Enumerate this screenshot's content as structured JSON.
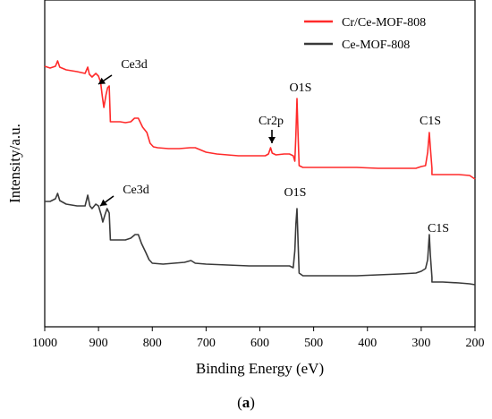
{
  "caption": {
    "open": "(",
    "letter": "a",
    "close": ")"
  },
  "chart_data": {
    "type": "line",
    "xlabel": "Binding Energy (eV)",
    "ylabel": "Intensity/a.u.",
    "xlim": [
      1000,
      200
    ],
    "x_reversed": true,
    "x_ticks": [
      1000,
      900,
      800,
      700,
      600,
      500,
      400,
      300,
      200
    ],
    "y_ticks_shown": false,
    "legend_position": "top-right",
    "grid": false,
    "series": [
      {
        "name": "Cr/Ce-MOF-808",
        "color": "#ff2a2a",
        "points": [
          [
            1000,
            74
          ],
          [
            990,
            76
          ],
          [
            980,
            74
          ],
          [
            976,
            68
          ],
          [
            972,
            75
          ],
          [
            960,
            78
          ],
          [
            940,
            80
          ],
          [
            925,
            82
          ],
          [
            920,
            75
          ],
          [
            917,
            83
          ],
          [
            912,
            86
          ],
          [
            905,
            82
          ],
          [
            900,
            85
          ],
          [
            896,
            92
          ],
          [
            893,
            107
          ],
          [
            890,
            120
          ],
          [
            886,
            106
          ],
          [
            883,
            98
          ],
          [
            880,
            96
          ],
          [
            878,
            136
          ],
          [
            870,
            136
          ],
          [
            860,
            136
          ],
          [
            850,
            137
          ],
          [
            840,
            136
          ],
          [
            833,
            132
          ],
          [
            826,
            132
          ],
          [
            818,
            142
          ],
          [
            810,
            148
          ],
          [
            804,
            160
          ],
          [
            798,
            164
          ],
          [
            790,
            165
          ],
          [
            770,
            166
          ],
          [
            750,
            166
          ],
          [
            730,
            165
          ],
          [
            720,
            165
          ],
          [
            700,
            170
          ],
          [
            680,
            172
          ],
          [
            660,
            173
          ],
          [
            640,
            174
          ],
          [
            620,
            174
          ],
          [
            600,
            174
          ],
          [
            590,
            174
          ],
          [
            584,
            172
          ],
          [
            580,
            165
          ],
          [
            577,
            171
          ],
          [
            570,
            173
          ],
          [
            555,
            172
          ],
          [
            545,
            172
          ],
          [
            538,
            174
          ],
          [
            535,
            180
          ],
          [
            533,
            150
          ],
          [
            531,
            110
          ],
          [
            529,
            150
          ],
          [
            527,
            185
          ],
          [
            520,
            187
          ],
          [
            500,
            187
          ],
          [
            460,
            187
          ],
          [
            420,
            187
          ],
          [
            380,
            188
          ],
          [
            340,
            188
          ],
          [
            310,
            188
          ],
          [
            300,
            186
          ],
          [
            292,
            185
          ],
          [
            288,
            170
          ],
          [
            285,
            148
          ],
          [
            283,
            165
          ],
          [
            280,
            188
          ],
          [
            280,
            195
          ],
          [
            260,
            195
          ],
          [
            230,
            195
          ],
          [
            210,
            196
          ],
          [
            200,
            200
          ]
        ]
      },
      {
        "name": "Ce-MOF-808",
        "color": "#3a3a3a",
        "points": [
          [
            1000,
            225
          ],
          [
            990,
            225
          ],
          [
            980,
            222
          ],
          [
            976,
            216
          ],
          [
            972,
            224
          ],
          [
            960,
            228
          ],
          [
            940,
            230
          ],
          [
            925,
            230
          ],
          [
            920,
            218
          ],
          [
            916,
            230
          ],
          [
            912,
            233
          ],
          [
            905,
            228
          ],
          [
            900,
            230
          ],
          [
            895,
            240
          ],
          [
            892,
            248
          ],
          [
            888,
            240
          ],
          [
            884,
            233
          ],
          [
            880,
            238
          ],
          [
            878,
            268
          ],
          [
            870,
            268
          ],
          [
            850,
            268
          ],
          [
            840,
            266
          ],
          [
            832,
            262
          ],
          [
            826,
            262
          ],
          [
            820,
            272
          ],
          [
            812,
            282
          ],
          [
            806,
            290
          ],
          [
            800,
            294
          ],
          [
            780,
            295
          ],
          [
            760,
            294
          ],
          [
            740,
            293
          ],
          [
            728,
            291
          ],
          [
            720,
            294
          ],
          [
            700,
            295
          ],
          [
            660,
            296
          ],
          [
            620,
            297
          ],
          [
            580,
            297
          ],
          [
            560,
            297
          ],
          [
            545,
            297
          ],
          [
            538,
            299
          ],
          [
            535,
            280
          ],
          [
            533,
            250
          ],
          [
            531,
            233
          ],
          [
            529,
            270
          ],
          [
            527,
            305
          ],
          [
            520,
            308
          ],
          [
            500,
            308
          ],
          [
            460,
            308
          ],
          [
            420,
            308
          ],
          [
            380,
            307
          ],
          [
            340,
            306
          ],
          [
            310,
            305
          ],
          [
            300,
            303
          ],
          [
            292,
            300
          ],
          [
            288,
            290
          ],
          [
            285,
            262
          ],
          [
            283,
            285
          ],
          [
            280,
            310
          ],
          [
            280,
            315
          ],
          [
            260,
            315
          ],
          [
            230,
            316
          ],
          [
            210,
            317
          ],
          [
            200,
            318
          ]
        ]
      }
    ],
    "annotations": [
      {
        "id": "ce3d-red",
        "text": "Ce3d",
        "series": 0,
        "arrow": true
      },
      {
        "id": "cr2p",
        "text": "Cr2p",
        "series": 0,
        "arrow": true
      },
      {
        "id": "o1s-red",
        "text": "O1S",
        "series": 0,
        "arrow": false
      },
      {
        "id": "c1s-red",
        "text": "C1S",
        "series": 0,
        "arrow": false
      },
      {
        "id": "ce3d-black",
        "text": "Ce3d",
        "series": 1,
        "arrow": true
      },
      {
        "id": "o1s-black",
        "text": "O1S",
        "series": 1,
        "arrow": false
      },
      {
        "id": "c1s-black",
        "text": "C1S",
        "series": 1,
        "arrow": false
      }
    ]
  }
}
